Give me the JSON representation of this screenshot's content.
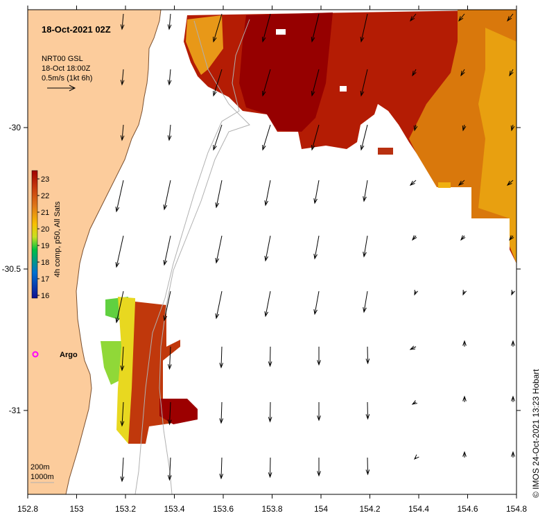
{
  "title": "18-Oct-2021 02Z",
  "product": {
    "line1": "NRT00 GSL",
    "line2": "18-Oct 18:00Z",
    "line3": "0.5m/s (1kt 6h)"
  },
  "colorbar": {
    "label": "4h comp, p50, All Sats",
    "ticks": [
      "23",
      "22",
      "21",
      "20",
      "19",
      "18",
      "17",
      "16"
    ],
    "colors": [
      "#a00000",
      "#c83c0c",
      "#e07818",
      "#f8c000",
      "#c8e020",
      "#00c040",
      "#0070d0",
      "#101090"
    ]
  },
  "x_ticks": [
    "152.8",
    "153",
    "153.2",
    "153.4",
    "153.6",
    "153.8",
    "154",
    "154.2",
    "154.4",
    "154.6",
    "154.8"
  ],
  "y_ticks": [
    "-30",
    "-30.5",
    "-31"
  ],
  "argo": {
    "label": "Argo",
    "color": "#ff00ff"
  },
  "contours": {
    "line1": "200m",
    "line2": "1000m"
  },
  "credit": "© IMOS 24-Oct-2021 13:23 Hobart",
  "colors": {
    "land": "#fccc9c",
    "sst_hot": "#a00000",
    "sst_warm": "#cc5010",
    "sst_mid": "#e89018",
    "sst_cool": "#f8c000",
    "sst_green": "#60d040",
    "arrow": "#000000",
    "isobath": "#b0b0b0"
  }
}
